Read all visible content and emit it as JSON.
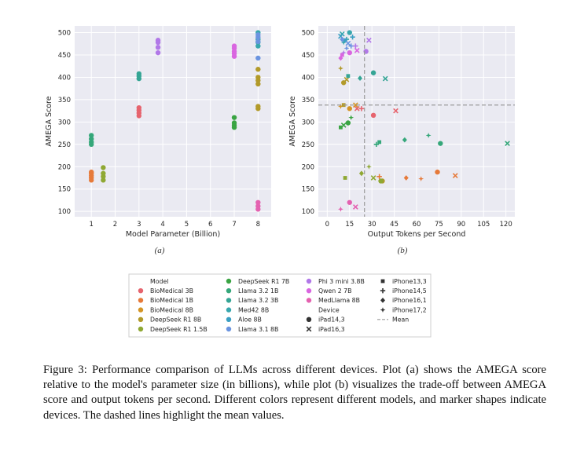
{
  "figure": {
    "caption_label": "Figure 3:",
    "caption_text": "Performance comparison of LLMs across different devices. Plot (a) shows the AMEGA score relative to the model's parameter size (in billions), while plot (b) visualizes the trade-off between AMEGA score and output tokens per second. Different colors represent different models, and marker shapes indicate devices. The dashed lines highlight the mean values."
  },
  "colors": {
    "BioMedical 3B": "#e6646e",
    "BioMedical 1B": "#e67a3a",
    "BioMedical 8B": "#d49526",
    "DeepSeek R1 8B": "#b29a2a",
    "DeepSeek R1 1.5B": "#8fa833",
    "DeepSeek R1 7B": "#3aa443",
    "Llama 3.2 1B": "#35a77a",
    "Llama 3.2 3B": "#35a595",
    "Med42 8B": "#38a7ae",
    "Aloe 8B": "#3a9fc2",
    "Llama 3.1 8B": "#6b94e0",
    "Phi 3 mini 3.8B": "#b178e8",
    "Qwen 2 7B": "#d966e0",
    "MedLlama 8B": "#e461b0"
  },
  "legend": {
    "model_title": "Model",
    "models": [
      "BioMedical 3B",
      "BioMedical 1B",
      "BioMedical 8B",
      "DeepSeek R1 8B",
      "DeepSeek R1 1.5B",
      "DeepSeek R1 7B",
      "Llama 3.2 1B",
      "Llama 3.2 3B",
      "Med42 8B",
      "Aloe 8B",
      "Llama 3.1 8B",
      "Phi 3 mini 3.8B",
      "Qwen 2 7B",
      "MedLlama 8B"
    ],
    "device_title": "Device",
    "devices": [
      {
        "label": "iPad14,3",
        "marker": "circle"
      },
      {
        "label": "iPad16,3",
        "marker": "x"
      },
      {
        "label": "iPhone13,3",
        "marker": "square"
      },
      {
        "label": "iPhone14,5",
        "marker": "plus"
      },
      {
        "label": "iPhone16,1",
        "marker": "diamond"
      },
      {
        "label": "iPhone17,2",
        "marker": "star"
      }
    ],
    "mean_label": "Mean"
  },
  "chart_data": [
    {
      "type": "scatter",
      "sublabel": "(a)",
      "xlabel": "Model Parameter (Billion)",
      "ylabel": "AMEGA Score",
      "xticks": [
        1,
        2,
        3,
        4,
        5,
        6,
        7,
        8
      ],
      "yticks": [
        100,
        150,
        200,
        250,
        300,
        350,
        400,
        450,
        500
      ],
      "xlim": [
        0.3,
        8.55
      ],
      "ylim": [
        88,
        515
      ],
      "grid": true,
      "series": [
        {
          "name": "BioMedical 3B",
          "x": [
            3,
            3,
            3,
            3
          ],
          "y": [
            314,
            320,
            326,
            332
          ]
        },
        {
          "name": "BioMedical 1B",
          "x": [
            1,
            1,
            1,
            1,
            1
          ],
          "y": [
            170,
            175,
            180,
            185,
            188
          ]
        },
        {
          "name": "DeepSeek R1 8B",
          "x": [
            8,
            8,
            8,
            8,
            8,
            8
          ],
          "y": [
            330,
            335,
            385,
            393,
            400,
            418
          ]
        },
        {
          "name": "DeepSeek R1 1.5B",
          "x": [
            1.5,
            1.5,
            1.5,
            1.5
          ],
          "y": [
            170,
            178,
            185,
            198
          ]
        },
        {
          "name": "DeepSeek R1 7B",
          "x": [
            7,
            7,
            7,
            7
          ],
          "y": [
            288,
            293,
            298,
            310
          ]
        },
        {
          "name": "Llama 3.2 1B",
          "x": [
            1,
            1,
            1,
            1
          ],
          "y": [
            250,
            255,
            262,
            270
          ]
        },
        {
          "name": "Llama 3.2 3B",
          "x": [
            3,
            3,
            3
          ],
          "y": [
            397,
            403,
            408
          ]
        },
        {
          "name": "Med42 8B",
          "x": [
            8,
            8,
            8,
            8
          ],
          "y": [
            470,
            478,
            485,
            500
          ]
        },
        {
          "name": "Llama 3.1 8B",
          "x": [
            8,
            8,
            8,
            8
          ],
          "y": [
            443,
            480,
            490,
            495
          ]
        },
        {
          "name": "Phi 3 mini 3.8B",
          "x": [
            3.8,
            3.8,
            3.8,
            3.8
          ],
          "y": [
            455,
            467,
            478,
            483
          ]
        },
        {
          "name": "Qwen 2 7B",
          "x": [
            7,
            7,
            7,
            7,
            7
          ],
          "y": [
            447,
            453,
            458,
            465,
            470
          ]
        },
        {
          "name": "MedLlama 8B",
          "x": [
            8,
            8,
            8
          ],
          "y": [
            105,
            112,
            120
          ]
        }
      ]
    },
    {
      "type": "scatter",
      "sublabel": "(b)",
      "xlabel": "Output Tokens per Second",
      "ylabel": "AMEGA Score",
      "xticks": [
        0,
        15,
        30,
        45,
        60,
        75,
        90,
        105,
        120
      ],
      "yticks": [
        100,
        150,
        200,
        250,
        300,
        350,
        400,
        450,
        500
      ],
      "xlim": [
        -6,
        126
      ],
      "ylim": [
        88,
        515
      ],
      "grid": true,
      "mean_x": 25,
      "mean_y": 338,
      "points": [
        {
          "model": "BioMedical 3B",
          "x": 31,
          "y": 315,
          "device": "circle"
        },
        {
          "model": "BioMedical 3B",
          "x": 46,
          "y": 325,
          "device": "x"
        },
        {
          "model": "BioMedical 3B",
          "x": 20,
          "y": 330,
          "device": "x"
        },
        {
          "model": "BioMedical 3B",
          "x": 23,
          "y": 330,
          "device": "plus"
        },
        {
          "model": "BioMedical 1B",
          "x": 74,
          "y": 188,
          "device": "circle"
        },
        {
          "model": "BioMedical 1B",
          "x": 86,
          "y": 180,
          "device": "x"
        },
        {
          "model": "BioMedical 1B",
          "x": 35,
          "y": 178,
          "device": "plus"
        },
        {
          "model": "BioMedical 1B",
          "x": 53,
          "y": 175,
          "device": "diamond"
        },
        {
          "model": "BioMedical 1B",
          "x": 63,
          "y": 173,
          "device": "star"
        },
        {
          "model": "BioMedical 8B",
          "x": 15,
          "y": 330,
          "device": "circle"
        },
        {
          "model": "BioMedical 8B",
          "x": 19,
          "y": 338,
          "device": "x"
        },
        {
          "model": "BioMedical 8B",
          "x": 9,
          "y": 335,
          "device": "star"
        },
        {
          "model": "DeepSeek R1 8B",
          "x": 11,
          "y": 388,
          "device": "circle"
        },
        {
          "model": "DeepSeek R1 8B",
          "x": 13,
          "y": 395,
          "device": "x"
        },
        {
          "model": "DeepSeek R1 8B",
          "x": 11,
          "y": 338,
          "device": "square"
        },
        {
          "model": "DeepSeek R1 8B",
          "x": 37,
          "y": 168,
          "device": "circle"
        },
        {
          "model": "DeepSeek R1 8B",
          "x": 9,
          "y": 420,
          "device": "star"
        },
        {
          "model": "DeepSeek R1 1.5B",
          "x": 36,
          "y": 168,
          "device": "circle"
        },
        {
          "model": "DeepSeek R1 1.5B",
          "x": 31,
          "y": 175,
          "device": "x"
        },
        {
          "model": "DeepSeek R1 1.5B",
          "x": 12,
          "y": 175,
          "device": "square"
        },
        {
          "model": "DeepSeek R1 1.5B",
          "x": 23,
          "y": 185,
          "device": "diamond"
        },
        {
          "model": "DeepSeek R1 1.5B",
          "x": 28,
          "y": 200,
          "device": "star"
        },
        {
          "model": "DeepSeek R1 7B",
          "x": 14,
          "y": 298,
          "device": "circle"
        },
        {
          "model": "DeepSeek R1 7B",
          "x": 11,
          "y": 293,
          "device": "x"
        },
        {
          "model": "DeepSeek R1 7B",
          "x": 9,
          "y": 288,
          "device": "square"
        },
        {
          "model": "DeepSeek R1 7B",
          "x": 16,
          "y": 310,
          "device": "star"
        },
        {
          "model": "Llama 3.2 1B",
          "x": 76,
          "y": 252,
          "device": "circle"
        },
        {
          "model": "Llama 3.2 1B",
          "x": 121,
          "y": 252,
          "device": "x"
        },
        {
          "model": "Llama 3.2 1B",
          "x": 33,
          "y": 250,
          "device": "plus"
        },
        {
          "model": "Llama 3.2 1B",
          "x": 52,
          "y": 260,
          "device": "diamond"
        },
        {
          "model": "Llama 3.2 1B",
          "x": 68,
          "y": 270,
          "device": "star"
        },
        {
          "model": "Llama 3.2 1B",
          "x": 35,
          "y": 255,
          "device": "square"
        },
        {
          "model": "Llama 3.2 3B",
          "x": 31,
          "y": 410,
          "device": "circle"
        },
        {
          "model": "Llama 3.2 3B",
          "x": 39,
          "y": 397,
          "device": "x"
        },
        {
          "model": "Llama 3.2 3B",
          "x": 22,
          "y": 398,
          "device": "diamond"
        },
        {
          "model": "Llama 3.2 3B",
          "x": 14,
          "y": 403,
          "device": "square"
        },
        {
          "model": "Med42 8B",
          "x": 15,
          "y": 500,
          "device": "circle"
        },
        {
          "model": "Med42 8B",
          "x": 10,
          "y": 497,
          "device": "x"
        },
        {
          "model": "Med42 8B",
          "x": 13,
          "y": 485,
          "device": "plus"
        },
        {
          "model": "Med42 8B",
          "x": 11,
          "y": 478,
          "device": "star"
        },
        {
          "model": "Aloe 8B",
          "x": 9,
          "y": 492,
          "device": "x"
        },
        {
          "model": "Aloe 8B",
          "x": 12,
          "y": 483,
          "device": "square"
        },
        {
          "model": "Aloe 8B",
          "x": 17,
          "y": 490,
          "device": "plus"
        },
        {
          "model": "Llama 3.1 8B",
          "x": 10,
          "y": 485,
          "device": "diamond"
        },
        {
          "model": "Llama 3.1 8B",
          "x": 14,
          "y": 476,
          "device": "x"
        },
        {
          "model": "Llama 3.1 8B",
          "x": 16,
          "y": 470,
          "device": "plus"
        },
        {
          "model": "Llama 3.1 8B",
          "x": 13,
          "y": 465,
          "device": "star"
        },
        {
          "model": "Phi 3 mini 3.8B",
          "x": 26,
          "y": 458,
          "device": "circle"
        },
        {
          "model": "Phi 3 mini 3.8B",
          "x": 28,
          "y": 483,
          "device": "x"
        },
        {
          "model": "Phi 3 mini 3.8B",
          "x": 19,
          "y": 470,
          "device": "plus"
        },
        {
          "model": "Phi 3 mini 3.8B",
          "x": 11,
          "y": 455,
          "device": "star"
        },
        {
          "model": "Qwen 2 7B",
          "x": 15,
          "y": 455,
          "device": "circle"
        },
        {
          "model": "Qwen 2 7B",
          "x": 20,
          "y": 460,
          "device": "x"
        },
        {
          "model": "Qwen 2 7B",
          "x": 10,
          "y": 450,
          "device": "square"
        },
        {
          "model": "Qwen 2 7B",
          "x": 9,
          "y": 443,
          "device": "diamond"
        },
        {
          "model": "MedLlama 8B",
          "x": 15,
          "y": 120,
          "device": "circle"
        },
        {
          "model": "MedLlama 8B",
          "x": 19,
          "y": 110,
          "device": "x"
        },
        {
          "model": "MedLlama 8B",
          "x": 9,
          "y": 105,
          "device": "star"
        }
      ]
    }
  ]
}
